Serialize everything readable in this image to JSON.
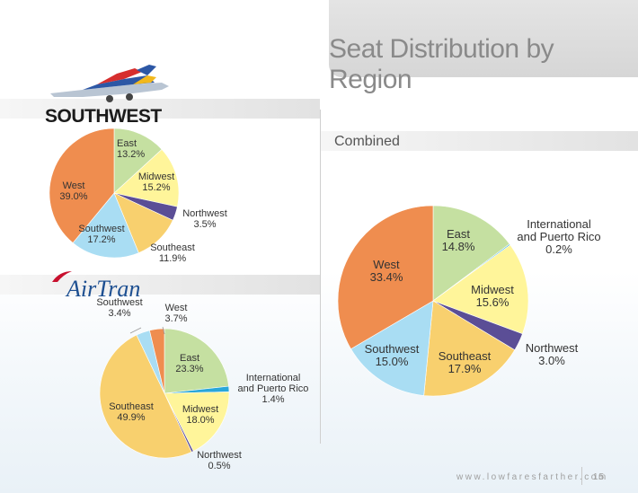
{
  "header": {
    "title": "Seat Distribution by Region"
  },
  "logos": {
    "southwest": "SOUTHWEST",
    "airtran": "AirTran"
  },
  "combined_label": "Combined",
  "footer": {
    "url": "www.lowfaresfarther.com",
    "page": "15"
  },
  "colors": {
    "East": "#c5e0a1",
    "International and Puerto Rico": "#2aa7d9",
    "Midwest": "#fff59a",
    "Northwest": "#5b4e96",
    "Southeast": "#f8d06e",
    "Southwest": "#a9ddf3",
    "West": "#ef8d4f"
  },
  "chart_data": [
    {
      "type": "pie",
      "id": "southwest",
      "slices": [
        {
          "label": [
            "East"
          ],
          "value": 13.2,
          "value_label": "13.2%"
        },
        {
          "label": [
            "Midwest"
          ],
          "value": 15.2,
          "value_label": "15.2%"
        },
        {
          "label": [
            "Northwest"
          ],
          "value": 3.5,
          "value_label": "3.5%"
        },
        {
          "label": [
            "Southeast"
          ],
          "value": 11.9,
          "value_label": "11.9%"
        },
        {
          "label": [
            "Southwest"
          ],
          "value": 17.2,
          "value_label": "17.2%"
        },
        {
          "label": [
            "West"
          ],
          "value": 39.0,
          "value_label": "39.0%"
        }
      ]
    },
    {
      "type": "pie",
      "id": "airtran",
      "slices": [
        {
          "label": [
            "East"
          ],
          "value": 23.3,
          "value_label": "23.3%"
        },
        {
          "label": [
            "International",
            "and Puerto Rico"
          ],
          "value": 1.4,
          "value_label": "1.4%"
        },
        {
          "label": [
            "Midwest"
          ],
          "value": 18.0,
          "value_label": "18.0%"
        },
        {
          "label": [
            "Northwest"
          ],
          "value": 0.5,
          "value_label": "0.5%"
        },
        {
          "label": [
            "Southeast"
          ],
          "value": 49.9,
          "value_label": "49.9%"
        },
        {
          "label": [
            "Southwest"
          ],
          "value": 3.4,
          "value_label": "3.4%"
        },
        {
          "label": [
            "West"
          ],
          "value": 3.7,
          "value_label": "3.7%"
        }
      ]
    },
    {
      "type": "pie",
      "id": "combined",
      "slices": [
        {
          "label": [
            "East"
          ],
          "value": 14.8,
          "value_label": "14.8%"
        },
        {
          "label": [
            "International",
            "and Puerto Rico"
          ],
          "value": 0.2,
          "value_label": "0.2%"
        },
        {
          "label": [
            "Midwest"
          ],
          "value": 15.6,
          "value_label": "15.6%"
        },
        {
          "label": [
            "Northwest"
          ],
          "value": 3.0,
          "value_label": "3.0%"
        },
        {
          "label": [
            "Southeast"
          ],
          "value": 17.9,
          "value_label": "17.9%"
        },
        {
          "label": [
            "Southwest"
          ],
          "value": 15.0,
          "value_label": "15.0%"
        },
        {
          "label": [
            "West"
          ],
          "value": 33.4,
          "value_label": "33.4%"
        }
      ]
    }
  ]
}
